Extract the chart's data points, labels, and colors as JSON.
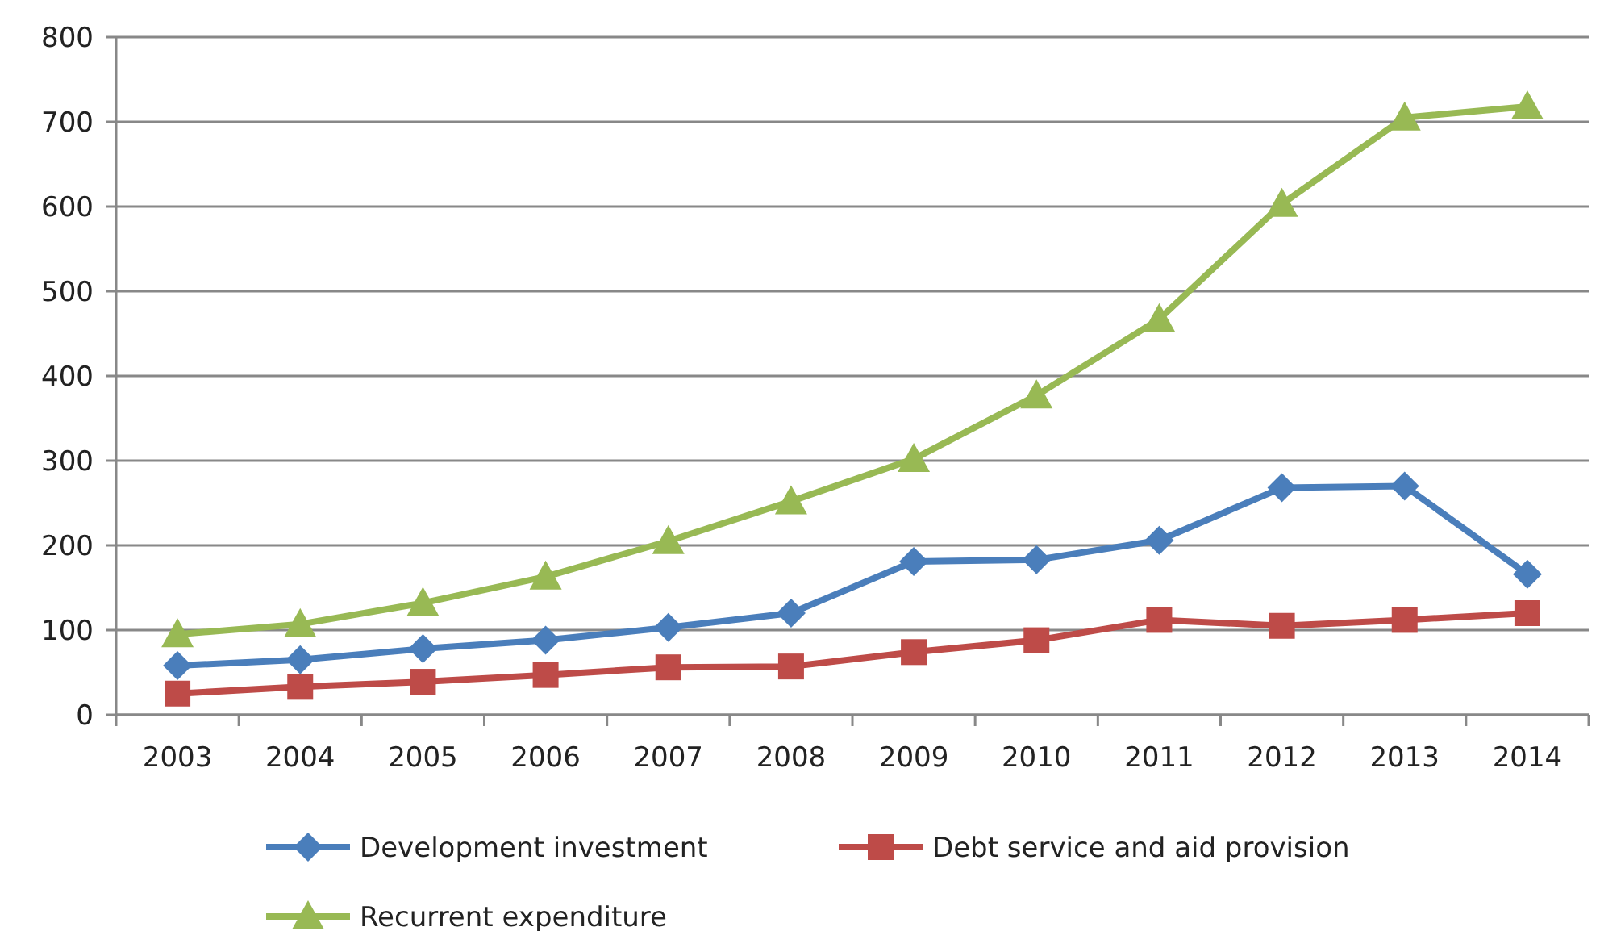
{
  "chart_data": {
    "type": "line",
    "categories": [
      "2003",
      "2004",
      "2005",
      "2006",
      "2007",
      "2008",
      "2009",
      "2010",
      "2011",
      "2012",
      "2013",
      "2014"
    ],
    "series": [
      {
        "name": "Development investment",
        "color": "#4a7ebb",
        "marker": "diamond",
        "values": [
          58,
          65,
          78,
          88,
          103,
          120,
          181,
          183,
          206,
          268,
          270,
          166
        ]
      },
      {
        "name": "Debt service and aid provision",
        "color": "#be4b48",
        "marker": "square",
        "values": [
          25,
          33,
          39,
          47,
          56,
          57,
          74,
          88,
          112,
          105,
          112,
          120
        ]
      },
      {
        "name": "Recurrent expenditure",
        "color": "#98b954",
        "marker": "triangle",
        "values": [
          95,
          107,
          132,
          163,
          205,
          252,
          302,
          377,
          467,
          603,
          705,
          718
        ]
      }
    ],
    "ylim": [
      0,
      800
    ],
    "yticks": [
      0,
      100,
      200,
      300,
      400,
      500,
      600,
      700,
      800
    ],
    "grid": "y",
    "legend": "bottom"
  }
}
